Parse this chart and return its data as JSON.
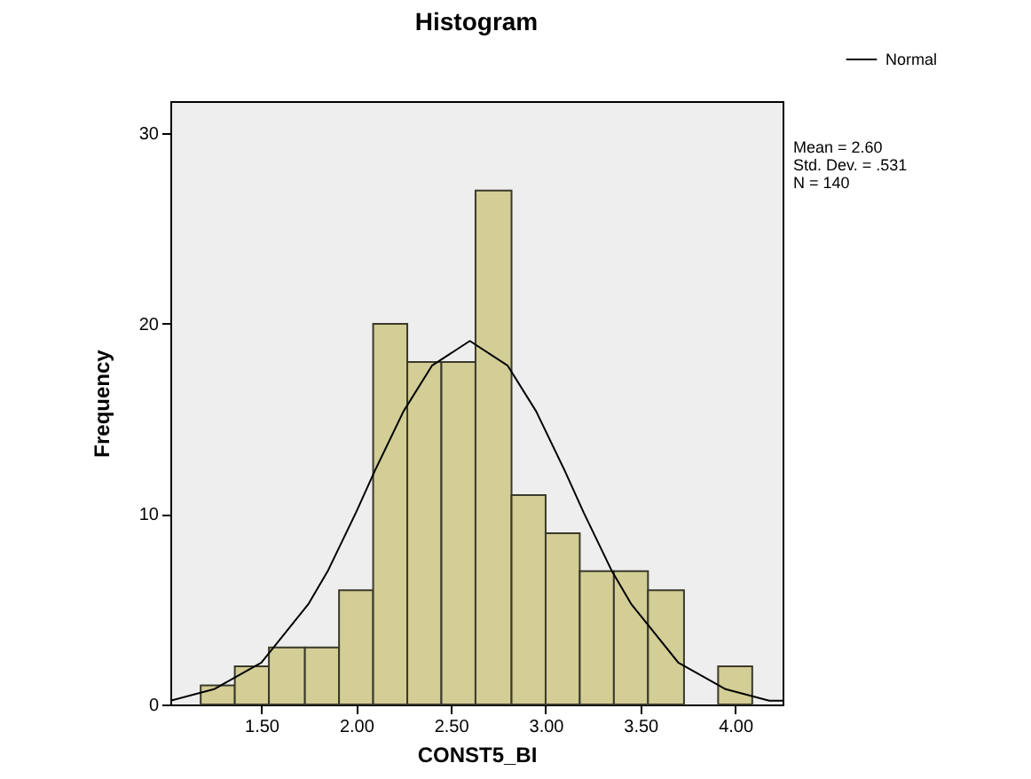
{
  "chart_data": {
    "type": "histogram",
    "title": "Histogram",
    "xlabel": "CONST5_BI",
    "ylabel": "Frequency",
    "bins": [
      1.18,
      1.36,
      1.54,
      1.73,
      1.91,
      2.09,
      2.27,
      2.45,
      2.63,
      2.82,
      3.0,
      3.18,
      3.36,
      3.54,
      3.73,
      3.91,
      4.09
    ],
    "series": [
      {
        "color": "#d3cd96",
        "values": [
          1,
          2,
          3,
          3,
          6,
          20,
          18,
          18,
          27,
          11,
          9,
          7,
          7,
          6,
          0,
          2
        ]
      },
      {
        "type": "line",
        "name": "Normal",
        "color": "#000000",
        "x": [
          1.02,
          1.25,
          1.5,
          1.75,
          1.85,
          2.0,
          2.1,
          2.25,
          2.4,
          2.6,
          2.8,
          2.95,
          3.1,
          3.2,
          3.35,
          3.45,
          3.7,
          3.95,
          4.18,
          4.25
        ],
        "values": [
          0.2,
          0.8,
          2.2,
          5.3,
          7.0,
          10.1,
          12.3,
          15.4,
          17.8,
          19.1,
          17.8,
          15.4,
          12.3,
          10.1,
          7.0,
          5.3,
          2.2,
          0.8,
          0.2,
          0.2
        ]
      }
    ],
    "xlim": [
      1.02,
      4.25
    ],
    "ylim": [
      0,
      31.7
    ],
    "xticks": [
      {
        "value": 1.5,
        "label": "1.50"
      },
      {
        "value": 2.0,
        "label": "2.00"
      },
      {
        "value": 2.5,
        "label": "2.50"
      },
      {
        "value": 3.0,
        "label": "3.00"
      },
      {
        "value": 3.5,
        "label": "3.50"
      },
      {
        "value": 4.0,
        "label": "4.00"
      }
    ],
    "yticks": [
      0,
      10,
      20,
      30
    ],
    "annotations": [
      "Mean = 2.60",
      "Std. Dev. = .531",
      "N = 140"
    ],
    "legend": "top right",
    "grid": false
  }
}
